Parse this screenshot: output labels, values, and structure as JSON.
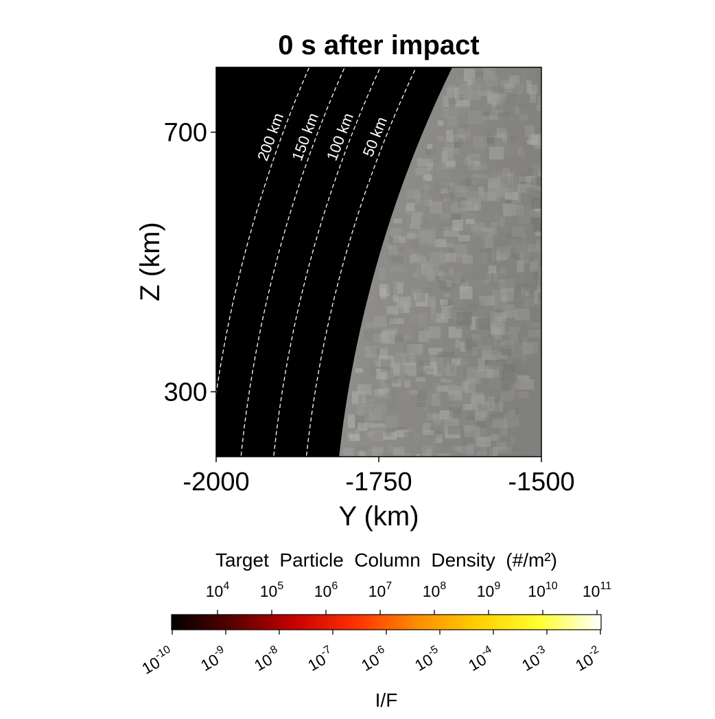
{
  "chart_data": {
    "type": "heatmap",
    "title": "0 s after impact",
    "xlabel": "Y (km)",
    "ylabel": "Z (km)",
    "xlim": [
      -2000,
      -1500
    ],
    "ylim": [
      200,
      800
    ],
    "x_ticks": [
      -2000,
      -1750,
      -1500
    ],
    "x_tick_labels": [
      "-2000",
      "-1750",
      "-1500"
    ],
    "y_ticks": [
      300,
      700
    ],
    "y_tick_labels": [
      "300",
      "700"
    ],
    "planet_radius_km": 1822,
    "altitude_contours": [
      {
        "altitude_km": 200,
        "label": "200 km"
      },
      {
        "altitude_km": 150,
        "label": "150 km"
      },
      {
        "altitude_km": 100,
        "label": "100 km"
      },
      {
        "altitude_km": 50,
        "label": "50 km"
      }
    ],
    "colorbar": {
      "colormap": "hot",
      "colors": [
        "#000000",
        "#5a0000",
        "#c80000",
        "#ff3000",
        "#ff8c00",
        "#ffd000",
        "#ffff30",
        "#ffffff"
      ],
      "top_label": "Target  Particle  Column  Density  (#/m²)",
      "top_ticks": [
        {
          "base": "10",
          "exp": "4"
        },
        {
          "base": "10",
          "exp": "5"
        },
        {
          "base": "10",
          "exp": "6"
        },
        {
          "base": "10",
          "exp": "7"
        },
        {
          "base": "10",
          "exp": "8"
        },
        {
          "base": "10",
          "exp": "9"
        },
        {
          "base": "10",
          "exp": "10"
        },
        {
          "base": "10",
          "exp": "11"
        }
      ],
      "bottom_label": "I/F",
      "bottom_ticks": [
        {
          "base": "10",
          "exp": "-10"
        },
        {
          "base": "10",
          "exp": "-9"
        },
        {
          "base": "10",
          "exp": "-8"
        },
        {
          "base": "10",
          "exp": "-7"
        },
        {
          "base": "10",
          "exp": "-6"
        },
        {
          "base": "10",
          "exp": "-5"
        },
        {
          "base": "10",
          "exp": "-4"
        },
        {
          "base": "10",
          "exp": "-3"
        },
        {
          "base": "10",
          "exp": "-2"
        }
      ]
    },
    "surface_color": "#8a8986",
    "background_color": "#000000"
  }
}
